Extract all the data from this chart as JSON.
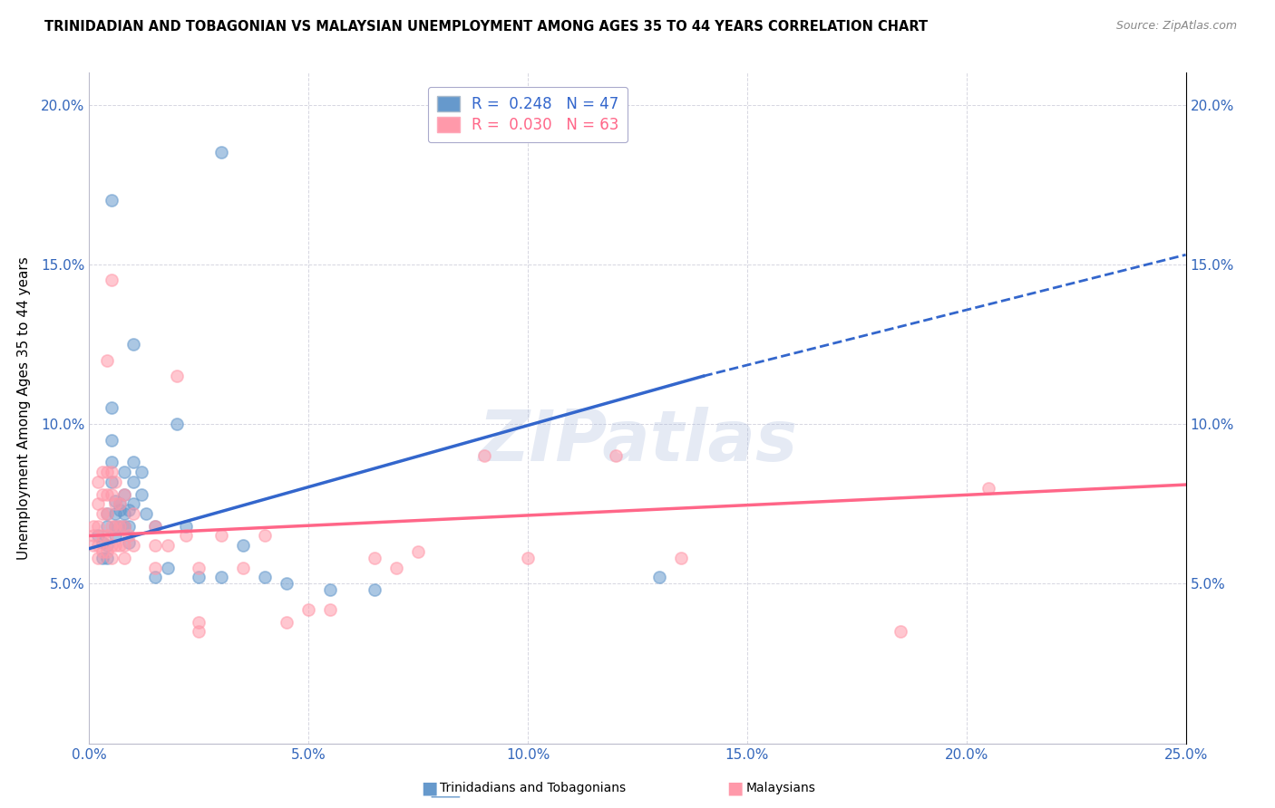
{
  "title": "TRINIDADIAN AND TOBAGONIAN VS MALAYSIAN UNEMPLOYMENT AMONG AGES 35 TO 44 YEARS CORRELATION CHART",
  "source": "Source: ZipAtlas.com",
  "ylabel": "Unemployment Among Ages 35 to 44 years",
  "xlim": [
    0.0,
    0.25
  ],
  "ylim": [
    0.0,
    0.21
  ],
  "xticks": [
    0.0,
    0.05,
    0.1,
    0.15,
    0.2,
    0.25
  ],
  "xticklabels": [
    "0.0%",
    "5.0%",
    "10.0%",
    "15.0%",
    "20.0%",
    "25.0%"
  ],
  "yticks": [
    0.0,
    0.05,
    0.1,
    0.15,
    0.2
  ],
  "yticklabels": [
    "",
    "5.0%",
    "10.0%",
    "15.0%",
    "20.0%"
  ],
  "legend_blue_label": "R =  0.248   N = 47",
  "legend_pink_label": "R =  0.030   N = 63",
  "watermark": "ZIPatlas",
  "blue_color": "#6699CC",
  "pink_color": "#FF99AA",
  "blue_line_color": "#3366CC",
  "pink_line_color": "#FF6688",
  "blue_line_solid": [
    [
      0.0,
      0.061
    ],
    [
      0.14,
      0.115
    ]
  ],
  "blue_line_dashed": [
    [
      0.14,
      0.115
    ],
    [
      0.25,
      0.153
    ]
  ],
  "pink_line": [
    [
      0.0,
      0.065
    ],
    [
      0.25,
      0.081
    ]
  ],
  "blue_scatter": [
    [
      0.002,
      0.065
    ],
    [
      0.003,
      0.063
    ],
    [
      0.003,
      0.058
    ],
    [
      0.004,
      0.072
    ],
    [
      0.004,
      0.068
    ],
    [
      0.004,
      0.062
    ],
    [
      0.004,
      0.058
    ],
    [
      0.005,
      0.105
    ],
    [
      0.005,
      0.095
    ],
    [
      0.005,
      0.088
    ],
    [
      0.005,
      0.082
    ],
    [
      0.006,
      0.076
    ],
    [
      0.006,
      0.072
    ],
    [
      0.006,
      0.068
    ],
    [
      0.006,
      0.065
    ],
    [
      0.007,
      0.075
    ],
    [
      0.007,
      0.073
    ],
    [
      0.007,
      0.068
    ],
    [
      0.008,
      0.085
    ],
    [
      0.008,
      0.078
    ],
    [
      0.008,
      0.072
    ],
    [
      0.008,
      0.068
    ],
    [
      0.009,
      0.073
    ],
    [
      0.009,
      0.068
    ],
    [
      0.009,
      0.063
    ],
    [
      0.01,
      0.088
    ],
    [
      0.01,
      0.082
    ],
    [
      0.01,
      0.075
    ],
    [
      0.012,
      0.085
    ],
    [
      0.012,
      0.078
    ],
    [
      0.013,
      0.072
    ],
    [
      0.015,
      0.068
    ],
    [
      0.015,
      0.052
    ],
    [
      0.018,
      0.055
    ],
    [
      0.02,
      0.1
    ],
    [
      0.022,
      0.068
    ],
    [
      0.025,
      0.052
    ],
    [
      0.03,
      0.052
    ],
    [
      0.035,
      0.062
    ],
    [
      0.04,
      0.052
    ],
    [
      0.045,
      0.05
    ],
    [
      0.055,
      0.048
    ],
    [
      0.03,
      0.185
    ],
    [
      0.065,
      0.048
    ],
    [
      0.01,
      0.125
    ],
    [
      0.005,
      0.17
    ],
    [
      0.13,
      0.052
    ]
  ],
  "pink_scatter": [
    [
      0.001,
      0.068
    ],
    [
      0.001,
      0.065
    ],
    [
      0.001,
      0.062
    ],
    [
      0.002,
      0.082
    ],
    [
      0.002,
      0.075
    ],
    [
      0.002,
      0.068
    ],
    [
      0.002,
      0.062
    ],
    [
      0.002,
      0.058
    ],
    [
      0.003,
      0.085
    ],
    [
      0.003,
      0.078
    ],
    [
      0.003,
      0.072
    ],
    [
      0.003,
      0.065
    ],
    [
      0.003,
      0.06
    ],
    [
      0.004,
      0.12
    ],
    [
      0.004,
      0.085
    ],
    [
      0.004,
      0.078
    ],
    [
      0.004,
      0.072
    ],
    [
      0.004,
      0.065
    ],
    [
      0.004,
      0.06
    ],
    [
      0.005,
      0.085
    ],
    [
      0.005,
      0.078
    ],
    [
      0.005,
      0.068
    ],
    [
      0.005,
      0.062
    ],
    [
      0.005,
      0.058
    ],
    [
      0.006,
      0.082
    ],
    [
      0.006,
      0.075
    ],
    [
      0.006,
      0.068
    ],
    [
      0.006,
      0.062
    ],
    [
      0.007,
      0.075
    ],
    [
      0.007,
      0.068
    ],
    [
      0.007,
      0.062
    ],
    [
      0.008,
      0.078
    ],
    [
      0.008,
      0.068
    ],
    [
      0.008,
      0.062
    ],
    [
      0.008,
      0.058
    ],
    [
      0.009,
      0.065
    ],
    [
      0.01,
      0.072
    ],
    [
      0.01,
      0.062
    ],
    [
      0.015,
      0.068
    ],
    [
      0.015,
      0.055
    ],
    [
      0.018,
      0.062
    ],
    [
      0.02,
      0.115
    ],
    [
      0.022,
      0.065
    ],
    [
      0.025,
      0.038
    ],
    [
      0.025,
      0.035
    ],
    [
      0.03,
      0.065
    ],
    [
      0.035,
      0.055
    ],
    [
      0.04,
      0.065
    ],
    [
      0.045,
      0.038
    ],
    [
      0.05,
      0.042
    ],
    [
      0.055,
      0.042
    ],
    [
      0.065,
      0.058
    ],
    [
      0.07,
      0.055
    ],
    [
      0.1,
      0.058
    ],
    [
      0.12,
      0.09
    ],
    [
      0.005,
      0.145
    ],
    [
      0.015,
      0.062
    ],
    [
      0.025,
      0.055
    ],
    [
      0.075,
      0.06
    ],
    [
      0.09,
      0.09
    ],
    [
      0.135,
      0.058
    ],
    [
      0.185,
      0.035
    ],
    [
      0.205,
      0.08
    ]
  ]
}
